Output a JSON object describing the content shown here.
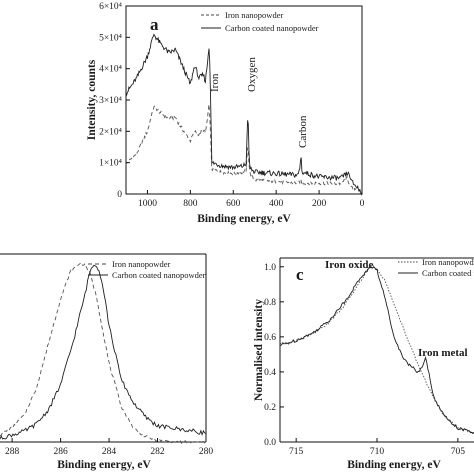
{
  "chart_data": [
    {
      "panel": "a",
      "type": "line",
      "xlabel": "Binding energy, eV",
      "ylabel": "Intensity, counts",
      "xlim": [
        1100,
        0
      ],
      "ylim": [
        0,
        60000
      ],
      "xticks": [
        1000,
        800,
        600,
        400,
        200,
        0
      ],
      "xtick_labels": [
        "1000",
        "800",
        "600",
        "400",
        "200",
        "0"
      ],
      "yticks": [
        0,
        10000,
        20000,
        30000,
        40000,
        50000,
        60000
      ],
      "ytick_labels": [
        "0",
        "1×10⁴",
        "2×10⁴",
        "3×10⁴",
        "4×10⁴",
        "5×10⁴",
        "6×10⁴"
      ],
      "legend": [
        "Iron nanopowder",
        "Carbon coated nanopowder"
      ],
      "annotations": [
        "Iron",
        "Oxygen",
        "Carbon"
      ],
      "series": [
        {
          "name": "Iron nanopowder",
          "style": "dashed",
          "x": [
            1100,
            1050,
            1000,
            970,
            940,
            900,
            870,
            850,
            800,
            780,
            760,
            740,
            730,
            720,
            712,
            708,
            700,
            650,
            600,
            560,
            540,
            532,
            526,
            520,
            500,
            400,
            300,
            290,
            284,
            280,
            200,
            100,
            70,
            56,
            50,
            20,
            0
          ],
          "y": [
            9500,
            13000,
            20000,
            28000,
            26000,
            24000,
            24500,
            22000,
            17000,
            20000,
            19000,
            20500,
            19500,
            24000,
            29000,
            22000,
            8000,
            6800,
            6600,
            6800,
            7500,
            16000,
            9000,
            6000,
            4500,
            4000,
            3500,
            4000,
            4300,
            3500,
            3500,
            3300,
            5000,
            3000,
            2000,
            1500,
            300
          ]
        },
        {
          "name": "Carbon coated nanopowder",
          "style": "solid",
          "x": [
            1100,
            1050,
            1000,
            970,
            940,
            900,
            870,
            850,
            800,
            780,
            760,
            740,
            730,
            720,
            712,
            708,
            700,
            650,
            600,
            560,
            540,
            532,
            526,
            520,
            500,
            400,
            300,
            290,
            284,
            280,
            200,
            100,
            70,
            56,
            50,
            20,
            0
          ],
          "y": [
            32000,
            37000,
            44000,
            51000,
            48000,
            45000,
            46000,
            43000,
            35000,
            41000,
            37000,
            38000,
            36000,
            42000,
            48000,
            38000,
            10000,
            9000,
            8500,
            8800,
            9500,
            27000,
            11000,
            8000,
            7000,
            6500,
            6000,
            8000,
            13000,
            7000,
            5500,
            5000,
            6500,
            6000,
            4000,
            2000,
            400
          ]
        }
      ]
    },
    {
      "panel": "b",
      "type": "line",
      "xlabel": "Binding energy, eV",
      "ylabel": "",
      "xlim": [
        288.5,
        280
      ],
      "xticks": [
        288,
        286,
        284,
        282,
        280
      ],
      "xtick_labels": [
        "288",
        "286",
        "284",
        "282",
        "280"
      ],
      "legend": [
        "Iron nanopowder",
        "Carbon coated nanopowder"
      ],
      "series": [
        {
          "name": "Iron nanopowder",
          "style": "dashed",
          "x": [
            288.5,
            288,
            287.5,
            287,
            286.5,
            286,
            285.6,
            285.2,
            285,
            284.8,
            284.5,
            284.2,
            284,
            283.5,
            283,
            282.5,
            282,
            281,
            280
          ],
          "y": [
            0.04,
            0.08,
            0.15,
            0.3,
            0.55,
            0.8,
            0.95,
            1.0,
            0.99,
            0.95,
            0.8,
            0.58,
            0.44,
            0.2,
            0.08,
            0.03,
            0.01,
            0.0,
            0.0
          ]
        },
        {
          "name": "Carbon coated nanopowder",
          "style": "solid",
          "x": [
            288.5,
            288,
            287.5,
            287,
            286.5,
            286,
            285.5,
            285,
            284.8,
            284.6,
            284.4,
            284.2,
            284,
            283.5,
            283,
            282.5,
            282,
            281,
            280
          ],
          "y": [
            0.02,
            0.04,
            0.06,
            0.1,
            0.18,
            0.32,
            0.55,
            0.82,
            0.95,
            1.0,
            0.96,
            0.83,
            0.65,
            0.35,
            0.22,
            0.14,
            0.09,
            0.07,
            0.05
          ]
        }
      ]
    },
    {
      "panel": "c",
      "type": "line",
      "xlabel": "Binding energy, eV",
      "ylabel": "Normalised intensity",
      "xlim": [
        716,
        704
      ],
      "ylim": [
        0,
        1.05
      ],
      "xticks": [
        715,
        710,
        705
      ],
      "xtick_labels": [
        "715",
        "710",
        "705"
      ],
      "yticks": [
        0,
        0.2,
        0.4,
        0.6,
        0.8,
        1.0
      ],
      "ytick_labels": [
        "0.0",
        "0.2",
        "0.4",
        "0.6",
        "0.8",
        "1.0"
      ],
      "legend": [
        "Iron nanopowder",
        "Carbon coated nanopowder"
      ],
      "annotations": [
        "Iron oxide",
        "Iron metal"
      ],
      "series": [
        {
          "name": "Iron nanopowder",
          "style": "dotted",
          "x": [
            716,
            715,
            714,
            713,
            712,
            711,
            710.6,
            710.2,
            710,
            709.5,
            709,
            708.5,
            708,
            707.5,
            707,
            706.5,
            706,
            705.5,
            705,
            704
          ],
          "y": [
            0.56,
            0.58,
            0.62,
            0.68,
            0.78,
            0.92,
            0.98,
            1.0,
            0.99,
            0.92,
            0.8,
            0.68,
            0.56,
            0.45,
            0.35,
            0.25,
            0.17,
            0.12,
            0.08,
            0.05
          ]
        },
        {
          "name": "Carbon coated nanopowder",
          "style": "solid",
          "x": [
            716,
            715,
            714,
            713,
            712,
            711,
            710.5,
            710.2,
            710,
            709.5,
            709,
            708.5,
            708,
            707.5,
            707.2,
            707,
            706.8,
            706.5,
            706,
            705.5,
            705,
            704
          ],
          "y": [
            0.55,
            0.58,
            0.62,
            0.69,
            0.8,
            0.94,
            0.99,
            1.0,
            0.98,
            0.82,
            0.62,
            0.5,
            0.44,
            0.4,
            0.42,
            0.48,
            0.4,
            0.26,
            0.17,
            0.12,
            0.08,
            0.05
          ]
        }
      ]
    }
  ]
}
